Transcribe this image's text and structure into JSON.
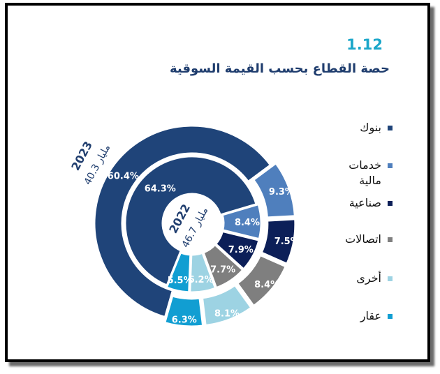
{
  "figure": {
    "number": "1.12",
    "title": "حصة القطاع بحسب القيمة السوقية"
  },
  "chart_data": {
    "type": "pie",
    "subtype": "nested-donut",
    "title": "حصة القطاع بحسب القيمة السوقية",
    "categories": [
      "بنوك",
      "خدمات مالية",
      "صناعية",
      "اتصالات",
      "أخرى",
      "عقار"
    ],
    "colors": [
      "#1f4479",
      "#4f7fbd",
      "#0c1f58",
      "#7f7f7f",
      "#9dd3e3",
      "#119ed2"
    ],
    "series": [
      {
        "ring": "outer",
        "center_year": "2023",
        "center_value": "40.3 مليار",
        "values": [
          60.4,
          9.3,
          7.5,
          8.4,
          8.1,
          6.3
        ],
        "labels": [
          "60.4%",
          "9.3%",
          "7.5%",
          "8.4%",
          "8.1%",
          "6.3%"
        ]
      },
      {
        "ring": "inner",
        "center_year": "2022",
        "center_value": "46.7 مليار",
        "values": [
          64.3,
          8.4,
          7.9,
          7.7,
          6.2,
          5.5
        ],
        "labels": [
          "64.3%",
          "8.4%",
          "7.9%",
          "7.7%",
          "6.2%",
          "5.5%"
        ]
      }
    ],
    "legend_position": "right"
  }
}
